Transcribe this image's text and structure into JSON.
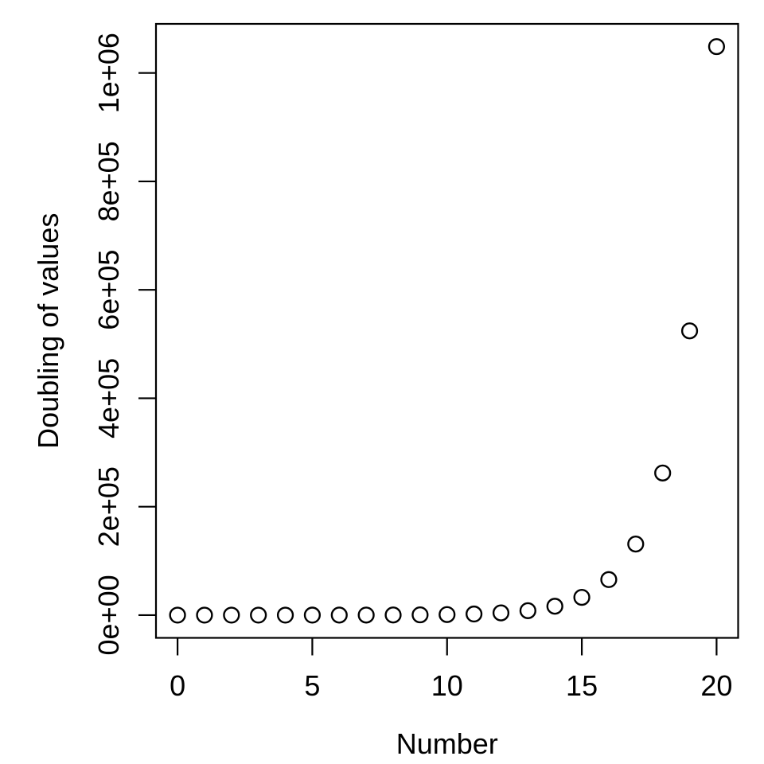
{
  "figure": {
    "background": "#ffffff"
  },
  "chart_data": {
    "type": "scatter",
    "title": "",
    "xlabel": "Number",
    "ylabel": "Doubling of values",
    "x": [
      0,
      1,
      2,
      3,
      4,
      5,
      6,
      7,
      8,
      9,
      10,
      11,
      12,
      13,
      14,
      15,
      16,
      17,
      18,
      19,
      20
    ],
    "y": [
      1,
      2,
      4,
      8,
      16,
      32,
      64,
      128,
      256,
      512,
      1024,
      2048,
      4096,
      8192,
      16384,
      32768,
      65536,
      131072,
      262144,
      524288,
      1048576
    ],
    "series": [
      {
        "name": "doubling",
        "values": [
          1,
          2,
          4,
          8,
          16,
          32,
          64,
          128,
          256,
          512,
          1024,
          2048,
          4096,
          8192,
          16384,
          32768,
          65536,
          131072,
          262144,
          524288,
          1048576
        ]
      }
    ],
    "xlim": [
      -0.8,
      20.8
    ],
    "ylim": [
      -41943,
      1090518
    ],
    "x_ticks": [
      {
        "value": 0,
        "label": "0"
      },
      {
        "value": 5,
        "label": "5"
      },
      {
        "value": 10,
        "label": "10"
      },
      {
        "value": 15,
        "label": "15"
      },
      {
        "value": 20,
        "label": "20"
      }
    ],
    "y_ticks": [
      {
        "value": 0,
        "label": "0e+00"
      },
      {
        "value": 200000,
        "label": "2e+05"
      },
      {
        "value": 400000,
        "label": "4e+05"
      },
      {
        "value": 600000,
        "label": "6e+05"
      },
      {
        "value": 800000,
        "label": "8e+05"
      },
      {
        "value": 1000000,
        "label": "1e+06"
      }
    ],
    "grid": false,
    "legend": "none",
    "marker": {
      "shape": "open-circle",
      "color": "#000000"
    },
    "axis_color": "#000000",
    "background_color": "#ffffff"
  }
}
